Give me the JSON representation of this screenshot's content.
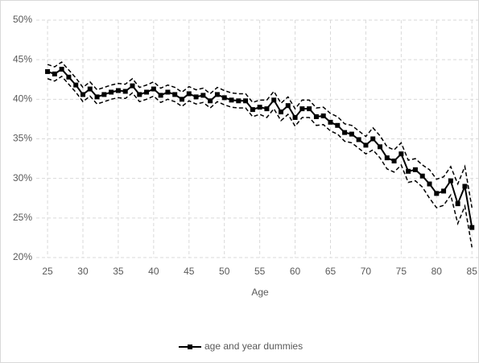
{
  "chart_data": {
    "type": "line",
    "xlabel": "Age",
    "x": [
      25,
      26,
      27,
      28,
      29,
      30,
      31,
      32,
      33,
      34,
      35,
      36,
      37,
      38,
      39,
      40,
      41,
      42,
      43,
      44,
      45,
      46,
      47,
      48,
      49,
      50,
      51,
      52,
      53,
      54,
      55,
      56,
      57,
      58,
      59,
      60,
      61,
      62,
      63,
      64,
      65,
      66,
      67,
      68,
      69,
      70,
      71,
      72,
      73,
      74,
      75,
      76,
      77,
      78,
      79,
      80,
      81,
      82,
      83,
      84,
      85
    ],
    "series": [
      {
        "name": "age and year dummies",
        "color": "#000000",
        "marker": "square",
        "dashed": false,
        "values": [
          43.5,
          43.2,
          43.8,
          42.8,
          41.8,
          40.6,
          41.3,
          40.3,
          40.6,
          40.9,
          41.1,
          41.0,
          41.7,
          40.6,
          40.9,
          41.3,
          40.5,
          40.9,
          40.6,
          40.0,
          40.7,
          40.3,
          40.5,
          39.8,
          40.6,
          40.2,
          39.9,
          39.8,
          39.8,
          38.7,
          39.0,
          38.8,
          39.9,
          38.4,
          39.2,
          37.7,
          38.8,
          38.8,
          37.8,
          37.9,
          37.1,
          36.7,
          35.8,
          35.6,
          34.9,
          34.2,
          35.0,
          34.0,
          32.6,
          32.2,
          33.1,
          30.9,
          31.1,
          30.3,
          29.3,
          28.1,
          28.4,
          29.7,
          26.8,
          29.0,
          23.8
        ]
      },
      {
        "color": "#000000",
        "dashed": true,
        "values": [
          44.4,
          44.1,
          44.7,
          43.7,
          42.7,
          41.5,
          42.2,
          41.2,
          41.5,
          41.8,
          42.0,
          41.9,
          42.6,
          41.5,
          41.8,
          42.2,
          41.4,
          41.8,
          41.5,
          40.9,
          41.6,
          41.2,
          41.4,
          40.7,
          41.5,
          41.1,
          40.8,
          40.7,
          40.7,
          39.6,
          39.9,
          39.9,
          41.0,
          39.5,
          40.3,
          38.8,
          39.9,
          39.9,
          38.9,
          39.0,
          38.2,
          37.8,
          36.9,
          36.7,
          36.0,
          35.3,
          36.4,
          35.4,
          34.0,
          33.6,
          34.5,
          32.3,
          32.5,
          31.7,
          31.1,
          29.9,
          30.2,
          31.5,
          29.3,
          31.5,
          26.3
        ]
      },
      {
        "color": "#000000",
        "dashed": true,
        "values": [
          42.6,
          42.3,
          42.9,
          41.9,
          40.9,
          39.7,
          40.4,
          39.4,
          39.7,
          40.0,
          40.2,
          40.1,
          40.8,
          39.7,
          40.0,
          40.4,
          39.6,
          40.0,
          39.7,
          39.1,
          39.8,
          39.4,
          39.6,
          38.9,
          39.7,
          39.3,
          39.0,
          38.9,
          38.9,
          37.8,
          38.1,
          37.7,
          38.8,
          37.3,
          38.1,
          36.6,
          37.7,
          37.7,
          36.7,
          36.8,
          36.0,
          35.6,
          34.7,
          34.5,
          33.8,
          33.1,
          33.6,
          32.6,
          31.2,
          30.8,
          31.7,
          29.5,
          29.7,
          28.9,
          27.5,
          26.3,
          26.6,
          27.9,
          24.3,
          26.5,
          21.3
        ]
      }
    ],
    "xlim": [
      23.4,
      86
    ],
    "xticks": [
      25,
      30,
      35,
      40,
      45,
      50,
      55,
      60,
      65,
      70,
      75,
      80,
      85
    ],
    "ylim": [
      20,
      50
    ],
    "yticks": [
      {
        "value": 20,
        "label": "20%"
      },
      {
        "value": 25,
        "label": "25%"
      },
      {
        "value": 30,
        "label": "30%"
      },
      {
        "value": 35,
        "label": "35%"
      },
      {
        "value": 40,
        "label": "40%"
      },
      {
        "value": 45,
        "label": "45%"
      },
      {
        "value": 50,
        "label": "50%"
      }
    ],
    "grid": true,
    "legend": "bottom"
  }
}
